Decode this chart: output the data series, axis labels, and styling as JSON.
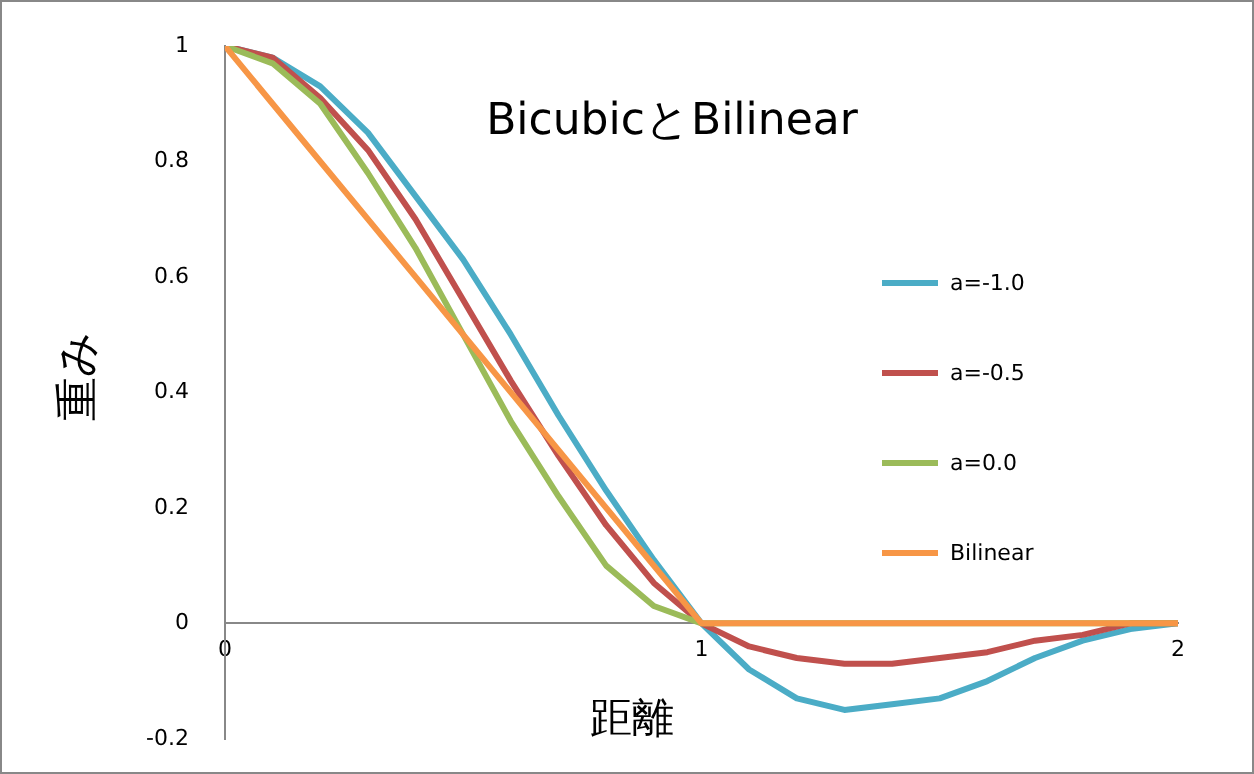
{
  "chart_data": {
    "type": "line",
    "title": "BicubicとBilinear",
    "xlabel": "距離",
    "ylabel": "重み",
    "x": [
      0,
      0.1,
      0.2,
      0.3,
      0.4,
      0.5,
      0.6,
      0.7,
      0.8,
      0.9,
      1,
      1.1,
      1.2,
      1.3,
      1.4,
      1.5,
      1.6,
      1.7,
      1.8,
      1.9,
      2
    ],
    "series": [
      {
        "name": "a=-1.0",
        "color": "#4bacc6",
        "values": [
          1,
          0.98,
          0.93,
          0.85,
          0.74,
          0.63,
          0.5,
          0.36,
          0.23,
          0.11,
          0,
          -0.08,
          -0.13,
          -0.15,
          -0.14,
          -0.13,
          -0.1,
          -0.06,
          -0.03,
          -0.01,
          0
        ]
      },
      {
        "name": "a=-0.5",
        "color": "#c0504d",
        "values": [
          1,
          0.98,
          0.91,
          0.82,
          0.7,
          0.56,
          0.42,
          0.29,
          0.17,
          0.07,
          0,
          -0.04,
          -0.06,
          -0.07,
          -0.07,
          -0.06,
          -0.05,
          -0.03,
          -0.02,
          0,
          0
        ]
      },
      {
        "name": "a=0.0",
        "color": "#9bbb59",
        "values": [
          1,
          0.97,
          0.9,
          0.78,
          0.65,
          0.5,
          0.35,
          0.22,
          0.1,
          0.03,
          0,
          0,
          0,
          0,
          0,
          0,
          0,
          0,
          0,
          0,
          0
        ]
      },
      {
        "name": "Bilinear",
        "color": "#f79646",
        "values": [
          1,
          0.9,
          0.8,
          0.7,
          0.6,
          0.5,
          0.4,
          0.3,
          0.2,
          0.1,
          0,
          0,
          0,
          0,
          0,
          0,
          0,
          0,
          0,
          0,
          0
        ]
      }
    ],
    "xlim": [
      0,
      2
    ],
    "xticks": [
      0,
      1,
      2
    ],
    "ylim": [
      -0.2,
      1
    ],
    "yticks": [
      -0.2,
      0,
      0.2,
      0.4,
      0.6,
      0.8,
      1
    ],
    "grid": false,
    "legend": "right",
    "marker": "none",
    "line_style": "solid"
  }
}
